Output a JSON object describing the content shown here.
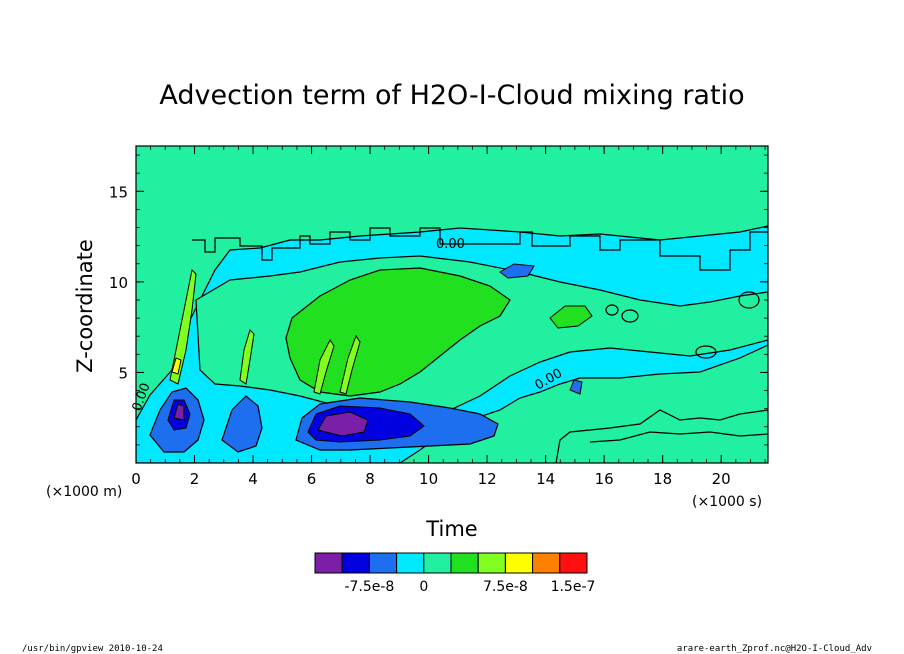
{
  "chart_data": {
    "type": "heatmap",
    "title": "Advection term of H2O-I-Cloud mixing ratio",
    "xlabel": "Time",
    "ylabel": "Z-coordinate",
    "x_unit_label": "(×1000 s)",
    "y_unit_label": "(×1000 m)",
    "xlim": [
      0,
      21.6
    ],
    "ylim": [
      0,
      17.5
    ],
    "x_ticks": [
      "0",
      "2",
      "4",
      "6",
      "8",
      "10",
      "12",
      "14",
      "16",
      "18",
      "20"
    ],
    "y_ticks": [
      "5",
      "10",
      "15"
    ],
    "contour_labels": [
      "0.00",
      "0.00",
      "0.00"
    ],
    "colorbar": {
      "colors": [
        "#7b1fa8",
        "#0000e0",
        "#1e6ef0",
        "#00e8ff",
        "#20f0a0",
        "#20e020",
        "#80ff20",
        "#ffff00",
        "#ff8000",
        "#ff1010"
      ],
      "tick_labels": [
        "-7.5e-8",
        "0",
        "7.5e-8",
        "1.5e-7"
      ]
    },
    "background_color": "#20f0a0"
  },
  "footer": {
    "left": "/usr/bin/gpview  2010-10-24",
    "right": "arare-earth_Zprof.nc@H2O-I-Cloud_Adv"
  }
}
